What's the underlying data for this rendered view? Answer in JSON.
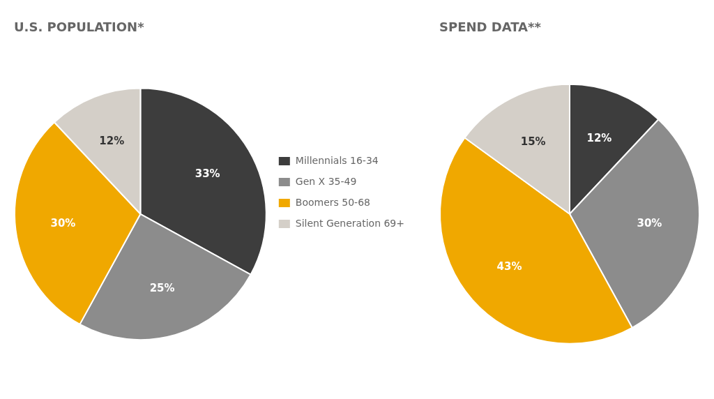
{
  "chart_data": [
    {
      "type": "pie",
      "title": "U.S. POPULATION*",
      "categories": [
        "Millennials 16-34",
        "Gen X 35-49",
        "Boomers 50-68",
        "Silent Generation 69+"
      ],
      "values": [
        33,
        25,
        30,
        12
      ],
      "value_labels": [
        "33%",
        "25%",
        "30%",
        "12%"
      ],
      "colors": [
        "#3d3d3d",
        "#8c8c8c",
        "#f0a800",
        "#d4cfc8"
      ],
      "data_labels": true,
      "legend": "right"
    },
    {
      "type": "pie",
      "title": "SPEND DATA**",
      "categories": [
        "Millennials 16-34",
        "Gen X 35-49",
        "Boomers 50-68",
        "Silent Generation 69+"
      ],
      "values": [
        12,
        30,
        43,
        15
      ],
      "value_labels": [
        "12%",
        "30%",
        "43%",
        "15%"
      ],
      "colors": [
        "#3d3d3d",
        "#8c8c8c",
        "#f0a800",
        "#d4cfc8"
      ],
      "data_labels": true
    }
  ]
}
